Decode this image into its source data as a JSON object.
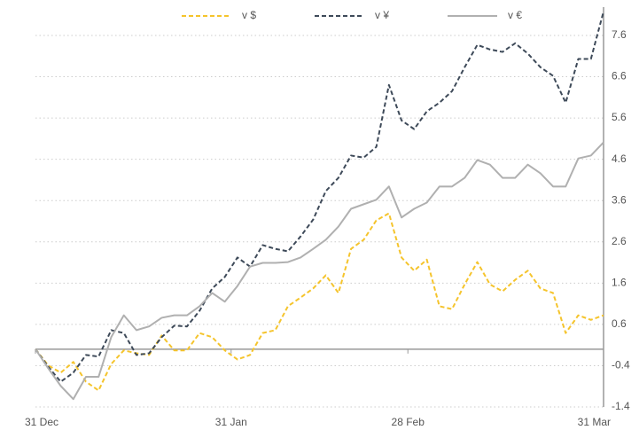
{
  "chart_data": {
    "type": "line",
    "x": [
      0,
      2,
      4,
      6,
      8,
      10,
      12,
      14,
      16,
      18,
      20,
      22,
      24,
      26,
      28,
      30,
      32,
      34,
      36,
      38,
      40,
      42,
      44,
      46,
      48,
      50,
      52,
      54,
      56,
      58,
      60,
      62,
      64,
      66,
      68,
      70,
      72,
      74,
      76,
      78,
      80,
      82,
      84,
      86,
      88,
      90
    ],
    "xlim": [
      0,
      90
    ],
    "xticks": [
      {
        "value": 0,
        "label": "31 Dec"
      },
      {
        "value": 31,
        "label": "31 Jan"
      },
      {
        "value": 59,
        "label": "28 Feb"
      },
      {
        "value": 90,
        "label": "31 Mar"
      }
    ],
    "ylim": [
      -1.4,
      8.2
    ],
    "yticks": [
      -1.4,
      -0.4,
      0.6,
      1.6,
      2.6,
      3.6,
      4.6,
      5.6,
      6.6,
      7.6
    ],
    "grid": true,
    "legend": "top",
    "series": [
      {
        "name": "v $",
        "color": "#f5c42c",
        "dash": true,
        "values": [
          0,
          -0.39,
          -0.57,
          -0.31,
          -0.79,
          -1.0,
          -0.36,
          -0.03,
          -0.1,
          -0.14,
          0.33,
          -0.03,
          -0.03,
          0.39,
          0.29,
          -0.03,
          -0.25,
          -0.14,
          0.39,
          0.46,
          1.04,
          1.25,
          1.47,
          1.79,
          1.36,
          2.43,
          2.65,
          3.12,
          3.29,
          2.22,
          1.9,
          2.17,
          1.04,
          0.97,
          1.57,
          2.11,
          1.57,
          1.4,
          1.68,
          1.9,
          1.47,
          1.36,
          0.39,
          0.82,
          0.71,
          0.82
        ]
      },
      {
        "name": "v ¥",
        "color": "#3e4a59",
        "dash": true,
        "values": [
          0,
          -0.42,
          -0.79,
          -0.57,
          -0.14,
          -0.18,
          0.46,
          0.39,
          -0.14,
          -0.1,
          0.29,
          0.57,
          0.55,
          0.93,
          1.47,
          1.75,
          2.22,
          2.0,
          2.52,
          2.43,
          2.37,
          2.73,
          3.14,
          3.83,
          4.15,
          4.69,
          4.64,
          4.9,
          6.4,
          5.54,
          5.33,
          5.76,
          5.97,
          6.25,
          6.83,
          7.37,
          7.26,
          7.2,
          7.41,
          7.16,
          6.83,
          6.62,
          5.97,
          7.03,
          7.03,
          8.18
        ]
      },
      {
        "name": "v €",
        "color": "#b0b0b0",
        "dash": false,
        "values": [
          0,
          -0.46,
          -0.89,
          -1.21,
          -0.67,
          -0.67,
          0.29,
          0.82,
          0.46,
          0.55,
          0.76,
          0.82,
          0.82,
          1.04,
          1.36,
          1.15,
          1.53,
          2.0,
          2.09,
          2.09,
          2.11,
          2.22,
          2.43,
          2.65,
          2.97,
          3.4,
          3.51,
          3.62,
          3.94,
          3.19,
          3.4,
          3.55,
          3.94,
          3.94,
          4.15,
          4.58,
          4.47,
          4.15,
          4.15,
          4.47,
          4.26,
          3.94,
          3.94,
          4.62,
          4.69,
          5.01
        ]
      }
    ]
  }
}
